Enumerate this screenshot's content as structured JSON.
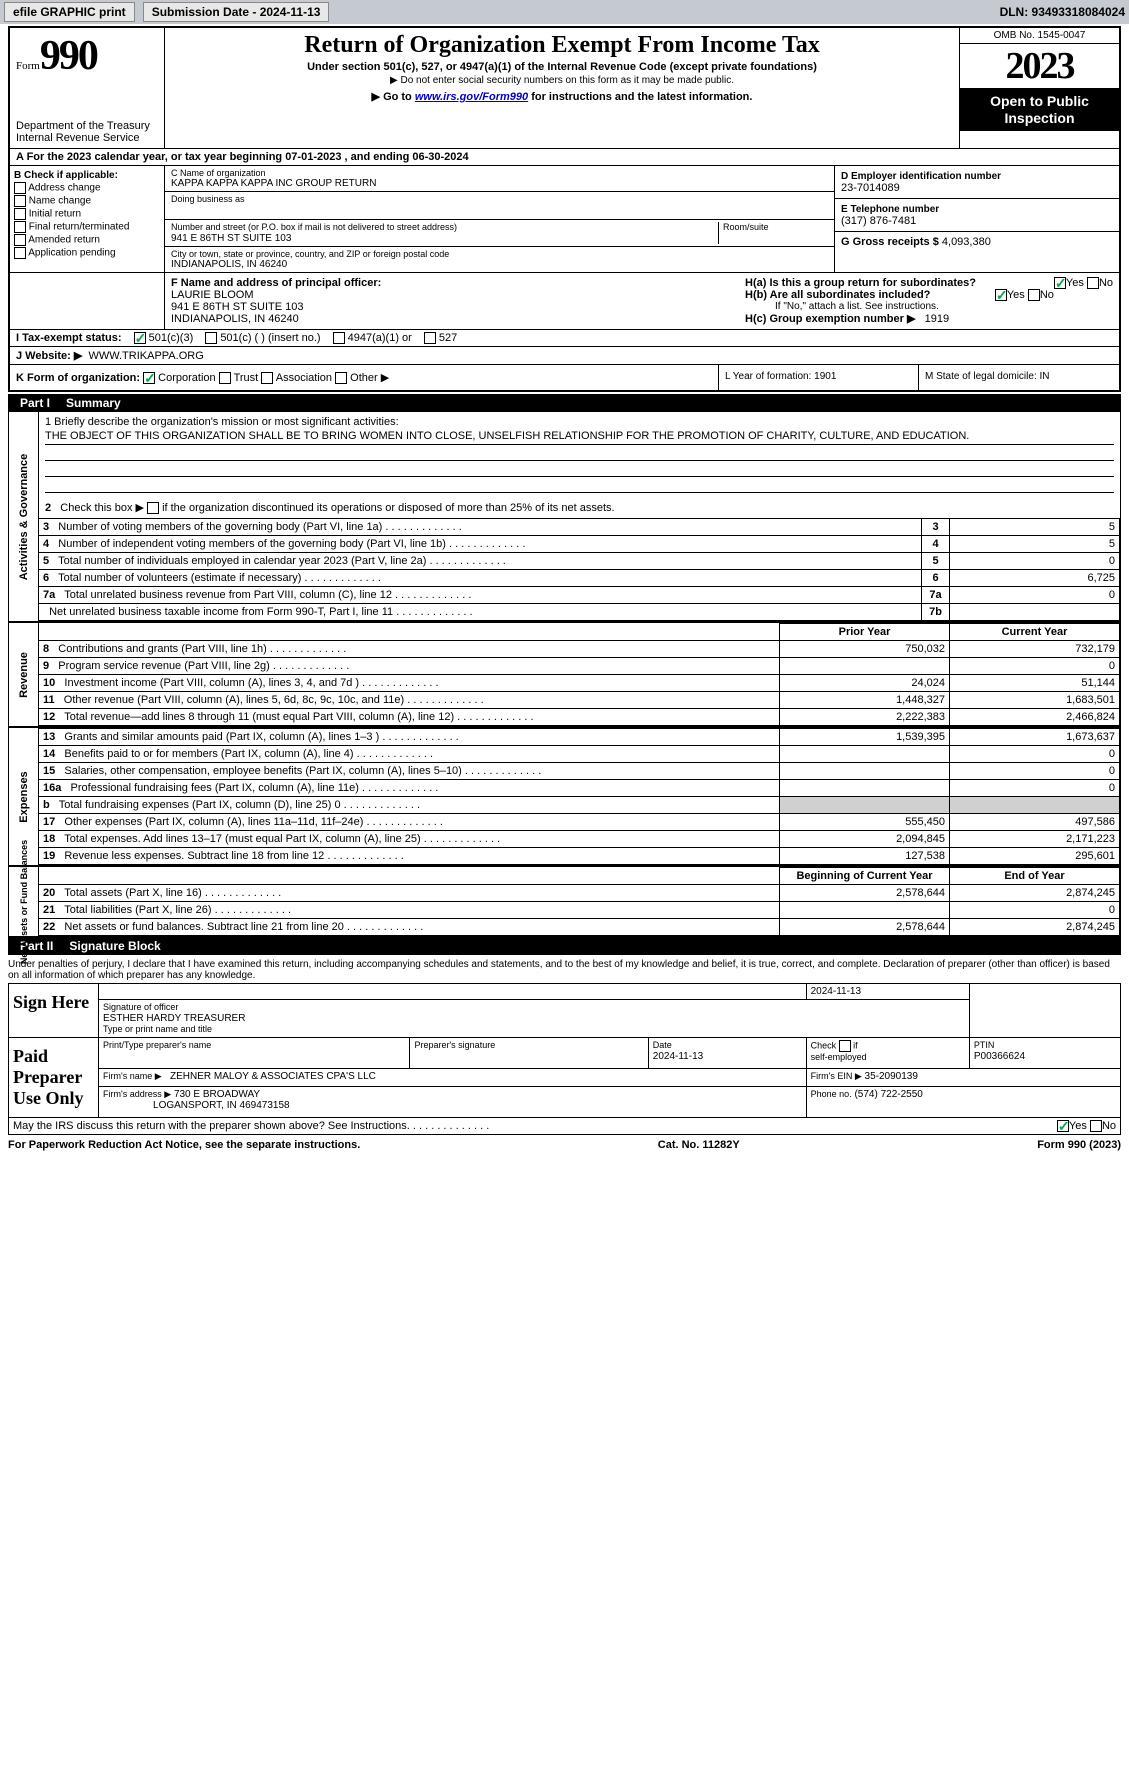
{
  "topbar": {
    "efile": "efile GRAPHIC print",
    "submission": "Submission Date - 2024-11-13",
    "dln": "DLN: 93493318084024"
  },
  "header": {
    "form_word": "Form",
    "form_num": "990",
    "dept": "Department of the Treasury\nInternal Revenue Service",
    "title": "Return of Organization Exempt From Income Tax",
    "sub1": "Under section 501(c), 527, or 4947(a)(1) of the Internal Revenue Code (except private foundations)",
    "sub2": "Do not enter social security numbers on this form as it may be made public.",
    "link_prefix": "Go to ",
    "link_url": "www.irs.gov/Form990",
    "link_suffix": " for instructions and the latest information.",
    "omb": "OMB No. 1545-0047",
    "year": "2023",
    "otp1": "Open to Public",
    "otp2": "Inspection"
  },
  "row_a": "A  For the 2023 calendar year, or tax year beginning 07-01-2023   , and ending 06-30-2024",
  "col_b": {
    "hdr": "B Check if applicable:",
    "opts": [
      "Address change",
      "Name change",
      "Initial return",
      "Final return/terminated",
      "Amended return",
      "Application pending"
    ]
  },
  "col_c": {
    "name_lbl": "C Name of organization",
    "name": "KAPPA KAPPA KAPPA INC GROUP RETURN",
    "dba_lbl": "Doing business as",
    "addr_lbl": "Number and street (or P.O. box if mail is not delivered to street address)",
    "addr": "941 E 86TH ST SUITE 103",
    "room_lbl": "Room/suite",
    "city_lbl": "City or town, state or province, country, and ZIP or foreign postal code",
    "city": "INDIANAPOLIS, IN  46240"
  },
  "col_d": {
    "ein_lbl": "D Employer identification number",
    "ein": "23-7014089",
    "tel_lbl": "E Telephone number",
    "tel": "(317) 876-7481",
    "gross_lbl": "G Gross receipts $",
    "gross": "4,093,380"
  },
  "row_f": {
    "lbl": "F  Name and address of principal officer:",
    "name": "LAURIE BLOOM",
    "addr1": "941 E 86TH ST SUITE 103",
    "addr2": "INDIANAPOLIS, IN  46240",
    "ha": "H(a)  Is this a group return for subordinates?",
    "hb": "H(b)  Are all subordinates included?",
    "hb_note": "If \"No,\" attach a list. See instructions.",
    "hc": "H(c)  Group exemption number ▶",
    "hc_val": "1919"
  },
  "row_i": {
    "lbl": "I   Tax-exempt status:",
    "o1": "501(c)(3)",
    "o2": "501(c) (  ) (insert no.)",
    "o3": "4947(a)(1) or",
    "o4": "527"
  },
  "row_j": {
    "lbl": "J   Website: ▶",
    "val": "WWW.TRIKAPPA.ORG"
  },
  "row_k": {
    "lbl": "K Form of organization:",
    "opts": [
      "Corporation",
      "Trust",
      "Association",
      "Other ▶"
    ],
    "l": "L Year of formation: 1901",
    "m": "M State of legal domicile: IN"
  },
  "part1": {
    "part": "Part I",
    "title": "Summary"
  },
  "sec1": {
    "side": "Activities & Governance",
    "q1": "1   Briefly describe the organization's mission or most significant activities:",
    "mission": "THE OBJECT OF THIS ORGANIZATION SHALL BE TO BRING WOMEN INTO CLOSE, UNSELFISH RELATIONSHIP FOR THE PROMOTION OF CHARITY, CULTURE, AND EDUCATION.",
    "q2": "2   Check this box ▶        if the organization discontinued its operations or disposed of more than 25% of its net assets.",
    "rows": [
      {
        "n": "3",
        "t": "Number of voting members of the governing body (Part VI, line 1a)",
        "ln": "3",
        "v": "5"
      },
      {
        "n": "4",
        "t": "Number of independent voting members of the governing body (Part VI, line 1b)",
        "ln": "4",
        "v": "5"
      },
      {
        "n": "5",
        "t": "Total number of individuals employed in calendar year 2023 (Part V, line 2a)",
        "ln": "5",
        "v": "0"
      },
      {
        "n": "6",
        "t": "Total number of volunteers (estimate if necessary)",
        "ln": "6",
        "v": "6,725"
      },
      {
        "n": "7a",
        "t": "Total unrelated business revenue from Part VIII, column (C), line 12",
        "ln": "7a",
        "v": "0"
      },
      {
        "n": "",
        "t": "Net unrelated business taxable income from Form 990-T, Part I, line 11",
        "ln": "7b",
        "v": ""
      }
    ]
  },
  "sec2": {
    "side": "Revenue",
    "hdr_prior": "Prior Year",
    "hdr_curr": "Current Year",
    "rows": [
      {
        "n": "8",
        "t": "Contributions and grants (Part VIII, line 1h)",
        "p": "750,032",
        "c": "732,179"
      },
      {
        "n": "9",
        "t": "Program service revenue (Part VIII, line 2g)",
        "p": "",
        "c": "0"
      },
      {
        "n": "10",
        "t": "Investment income (Part VIII, column (A), lines 3, 4, and 7d )",
        "p": "24,024",
        "c": "51,144"
      },
      {
        "n": "11",
        "t": "Other revenue (Part VIII, column (A), lines 5, 6d, 8c, 9c, 10c, and 11e)",
        "p": "1,448,327",
        "c": "1,683,501"
      },
      {
        "n": "12",
        "t": "Total revenue—add lines 8 through 11 (must equal Part VIII, column (A), line 12)",
        "p": "2,222,383",
        "c": "2,466,824"
      }
    ]
  },
  "sec3": {
    "side": "Expenses",
    "rows": [
      {
        "n": "13",
        "t": "Grants and similar amounts paid (Part IX, column (A), lines 1–3 )",
        "p": "1,539,395",
        "c": "1,673,637"
      },
      {
        "n": "14",
        "t": "Benefits paid to or for members (Part IX, column (A), line 4)",
        "p": "",
        "c": "0"
      },
      {
        "n": "15",
        "t": "Salaries, other compensation, employee benefits (Part IX, column (A), lines 5–10)",
        "p": "",
        "c": "0"
      },
      {
        "n": "16a",
        "t": "Professional fundraising fees (Part IX, column (A), line 11e)",
        "p": "",
        "c": "0"
      },
      {
        "n": "b",
        "t": "Total fundraising expenses (Part IX, column (D), line 25) 0",
        "p": "shade",
        "c": "shade"
      },
      {
        "n": "17",
        "t": "Other expenses (Part IX, column (A), lines 11a–11d, 11f–24e)",
        "p": "555,450",
        "c": "497,586"
      },
      {
        "n": "18",
        "t": "Total expenses. Add lines 13–17 (must equal Part IX, column (A), line 25)",
        "p": "2,094,845",
        "c": "2,171,223"
      },
      {
        "n": "19",
        "t": "Revenue less expenses. Subtract line 18 from line 12",
        "p": "127,538",
        "c": "295,601"
      }
    ]
  },
  "sec4": {
    "side": "Net Assets or Fund Balances",
    "hdr_prior": "Beginning of Current Year",
    "hdr_curr": "End of Year",
    "rows": [
      {
        "n": "20",
        "t": "Total assets (Part X, line 16)",
        "p": "2,578,644",
        "c": "2,874,245"
      },
      {
        "n": "21",
        "t": "Total liabilities (Part X, line 26)",
        "p": "",
        "c": "0"
      },
      {
        "n": "22",
        "t": "Net assets or fund balances. Subtract line 21 from line 20",
        "p": "2,578,644",
        "c": "2,874,245"
      }
    ]
  },
  "part2": {
    "part": "Part II",
    "title": "Signature Block"
  },
  "sig": {
    "decl": "Under penalties of perjury, I declare that I have examined this return, including accompanying schedules and statements, and to the best of my knowledge and belief, it is true, correct, and complete. Declaration of preparer (other than officer) is based on all information of which preparer has any knowledge.",
    "sign_here": "Sign Here",
    "sig_off": "Signature of officer",
    "sig_name": "ESTHER HARDY  TREASURER",
    "sig_date": "2024-11-13",
    "type_name": "Type or print name and title",
    "paid": "Paid Preparer Use Only",
    "prep_name_lbl": "Print/Type preparer's name",
    "prep_sig_lbl": "Preparer's signature",
    "date_lbl": "Date",
    "date_val": "2024-11-13",
    "check_lbl": "Check         if self-employed",
    "ptin_lbl": "PTIN",
    "ptin": "P00366624",
    "firm_name_lbl": "Firm's name ▶",
    "firm_name": "ZEHNER MALOY & ASSOCIATES CPA'S LLC",
    "firm_ein_lbl": "Firm's EIN ▶",
    "firm_ein": "35-2090139",
    "firm_addr_lbl": "Firm's address ▶",
    "firm_addr1": "730 E BROADWAY",
    "firm_addr2": "LOGANSPORT, IN  469473158",
    "phone_lbl": "Phone no.",
    "phone": "(574) 722-2550",
    "discuss": "May the IRS discuss this return with the preparer shown above? See Instructions."
  },
  "footer": {
    "left": "For Paperwork Reduction Act Notice, see the separate instructions.",
    "mid": "Cat. No. 11282Y",
    "right": "Form 990 (2023)"
  }
}
